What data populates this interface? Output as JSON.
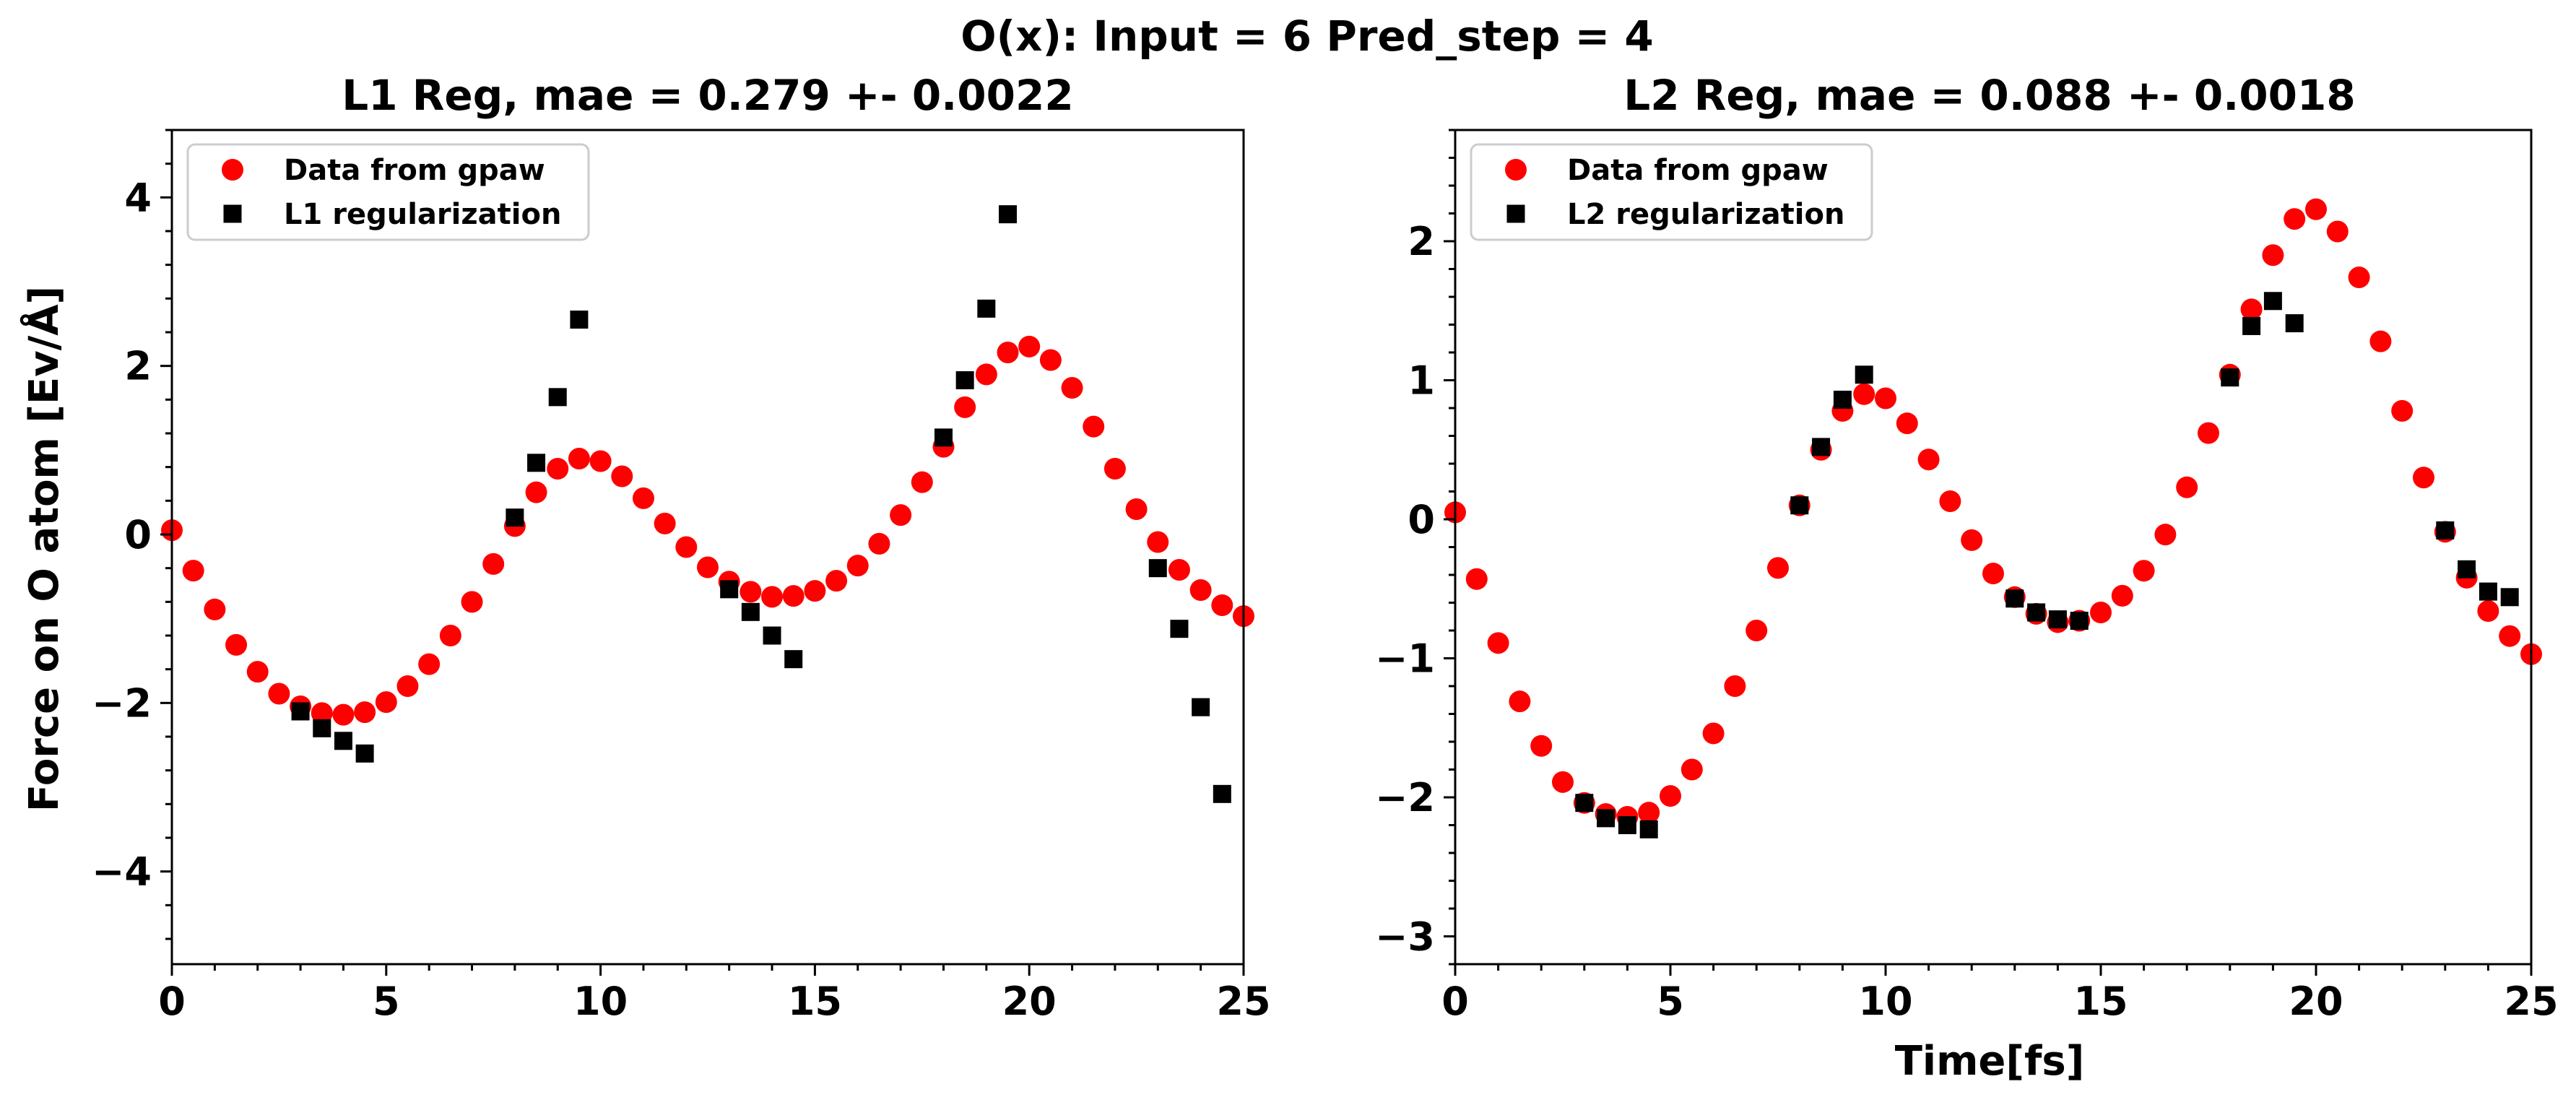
{
  "suptitle": "O(x): Input = 6 Pred_step = 4",
  "chart_data": [
    {
      "type": "scatter",
      "title": "L1 Reg, mae = 0.279 +- 0.0022",
      "xlabel": "",
      "ylabel": "Force on O atom [Ev/Å]",
      "xlim": [
        0,
        25
      ],
      "ylim": [
        -5.1,
        4.8
      ],
      "xticks": [
        0,
        5,
        10,
        15,
        20,
        25
      ],
      "yticks": [
        -4,
        -2,
        0,
        2,
        4
      ],
      "xtick_labels": [
        "0",
        "5",
        "10",
        "15",
        "20",
        "25"
      ],
      "ytick_labels": [
        "−4",
        "−2",
        "0",
        "2",
        "4"
      ],
      "grid": false,
      "legend_position": "upper-left",
      "series": [
        {
          "name": "Data from gpaw",
          "marker": "circle",
          "color": "#ff0000",
          "x": [
            0,
            0.5,
            1,
            1.5,
            2,
            2.5,
            3,
            3.5,
            4,
            4.5,
            5,
            5.5,
            6,
            6.5,
            7,
            7.5,
            8,
            8.5,
            9,
            9.5,
            10,
            10.5,
            11,
            11.5,
            12,
            12.5,
            13,
            13.5,
            14,
            14.5,
            15,
            15.5,
            16,
            16.5,
            17,
            17.5,
            18,
            18.5,
            19,
            19.5,
            20,
            20.5,
            21,
            21.5,
            22,
            22.5,
            23,
            23.5,
            24,
            24.5,
            25
          ],
          "y": [
            0.05,
            -0.43,
            -0.89,
            -1.31,
            -1.63,
            -1.89,
            -2.04,
            -2.12,
            -2.14,
            -2.11,
            -1.99,
            -1.8,
            -1.54,
            -1.2,
            -0.8,
            -0.35,
            0.1,
            0.5,
            0.78,
            0.9,
            0.87,
            0.69,
            0.43,
            0.13,
            -0.15,
            -0.39,
            -0.56,
            -0.68,
            -0.74,
            -0.73,
            -0.67,
            -0.55,
            -0.37,
            -0.11,
            0.23,
            0.62,
            1.04,
            1.51,
            1.9,
            2.16,
            2.23,
            2.07,
            1.74,
            1.28,
            0.78,
            0.3,
            -0.09,
            -0.42,
            -0.66,
            -0.84,
            -0.97
          ]
        },
        {
          "name": "L1 regularization",
          "marker": "square",
          "color": "#000000",
          "x": [
            3,
            3.5,
            4,
            4.5,
            8,
            8.5,
            9,
            9.5,
            13,
            13.5,
            14,
            14.5,
            18,
            18.5,
            19,
            19.5,
            23,
            23.5,
            24,
            24.5
          ],
          "y": [
            -2.1,
            -2.3,
            -2.45,
            -2.6,
            0.2,
            0.85,
            1.63,
            2.55,
            -0.65,
            -0.92,
            -1.2,
            -1.48,
            1.15,
            1.83,
            2.68,
            3.8,
            -0.4,
            -1.12,
            -2.05,
            -3.08
          ]
        }
      ]
    },
    {
      "type": "scatter",
      "title": "L2 Reg, mae = 0.088 +- 0.0018",
      "xlabel": "Time[fs]",
      "ylabel": "",
      "xlim": [
        0,
        25
      ],
      "ylim": [
        -3.2,
        2.8
      ],
      "xticks": [
        0,
        5,
        10,
        15,
        20,
        25
      ],
      "yticks": [
        -3,
        -2,
        -1,
        0,
        1,
        2
      ],
      "xtick_labels": [
        "0",
        "5",
        "10",
        "15",
        "20",
        "25"
      ],
      "ytick_labels": [
        "−3",
        "−2",
        "−1",
        "0",
        "1",
        "2"
      ],
      "grid": false,
      "legend_position": "upper-left",
      "series": [
        {
          "name": "Data from gpaw",
          "marker": "circle",
          "color": "#ff0000",
          "x": [
            0,
            0.5,
            1,
            1.5,
            2,
            2.5,
            3,
            3.5,
            4,
            4.5,
            5,
            5.5,
            6,
            6.5,
            7,
            7.5,
            8,
            8.5,
            9,
            9.5,
            10,
            10.5,
            11,
            11.5,
            12,
            12.5,
            13,
            13.5,
            14,
            14.5,
            15,
            15.5,
            16,
            16.5,
            17,
            17.5,
            18,
            18.5,
            19,
            19.5,
            20,
            20.5,
            21,
            21.5,
            22,
            22.5,
            23,
            23.5,
            24,
            24.5,
            25
          ],
          "y": [
            0.05,
            -0.43,
            -0.89,
            -1.31,
            -1.63,
            -1.89,
            -2.04,
            -2.12,
            -2.14,
            -2.11,
            -1.99,
            -1.8,
            -1.54,
            -1.2,
            -0.8,
            -0.35,
            0.1,
            0.5,
            0.78,
            0.9,
            0.87,
            0.69,
            0.43,
            0.13,
            -0.15,
            -0.39,
            -0.56,
            -0.68,
            -0.74,
            -0.73,
            -0.67,
            -0.55,
            -0.37,
            -0.11,
            0.23,
            0.62,
            1.04,
            1.51,
            1.9,
            2.16,
            2.23,
            2.07,
            1.74,
            1.28,
            0.78,
            0.3,
            -0.09,
            -0.42,
            -0.66,
            -0.84,
            -0.97
          ]
        },
        {
          "name": "L2 regularization",
          "marker": "square",
          "color": "#000000",
          "x": [
            3,
            3.5,
            4,
            4.5,
            8,
            8.5,
            9,
            9.5,
            13,
            13.5,
            14,
            14.5,
            18,
            18.5,
            19,
            19.5,
            23,
            23.5,
            24,
            24.5
          ],
          "y": [
            -2.04,
            -2.15,
            -2.2,
            -2.23,
            0.1,
            0.52,
            0.86,
            1.04,
            -0.57,
            -0.67,
            -0.72,
            -0.73,
            1.02,
            1.39,
            1.57,
            1.41,
            -0.08,
            -0.36,
            -0.52,
            -0.56
          ]
        }
      ]
    }
  ]
}
